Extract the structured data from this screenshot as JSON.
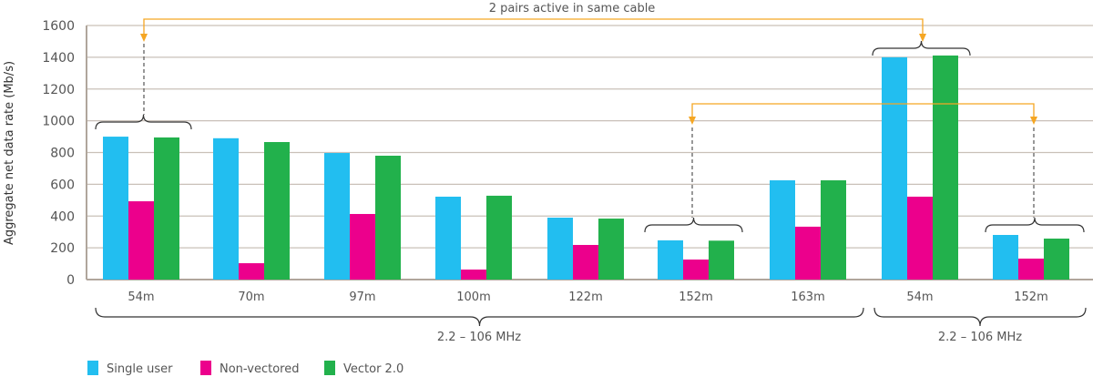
{
  "chart_data": {
    "type": "bar",
    "title": "",
    "xlabel": "",
    "ylabel": "Aggregate net data rate (Mb/s)",
    "ylim": [
      0,
      1600
    ],
    "yticks": [
      0,
      200,
      400,
      600,
      800,
      1000,
      1200,
      1400,
      1600
    ],
    "grid": true,
    "legend_position": "bottom-left",
    "categories": [
      "54m",
      "70m",
      "97m",
      "100m",
      "122m",
      "152m",
      "163m",
      "54m",
      "152m"
    ],
    "series": [
      {
        "name": "Single user",
        "color": "#22bef0",
        "values": [
          900,
          890,
          797,
          522,
          390,
          247,
          625,
          1400,
          281
        ]
      },
      {
        "name": "Non-vectored",
        "color": "#ec008c",
        "values": [
          493,
          103,
          413,
          63,
          218,
          126,
          333,
          522,
          132
        ]
      },
      {
        "name": "Vector 2.0",
        "color": "#22b14c",
        "values": [
          895,
          866,
          780,
          528,
          384,
          245,
          625,
          1411,
          258
        ]
      }
    ],
    "groups": [
      {
        "label": "2.2 – 106 MHz",
        "categories": [
          0,
          1,
          2,
          3,
          4,
          5,
          6
        ]
      },
      {
        "label": "2.2 – 106 MHz",
        "categories": [
          7,
          8
        ]
      }
    ],
    "annotations": [
      {
        "text": "2 pairs active in same cable",
        "links": [
          [
            0,
            7
          ]
        ],
        "color": "#f5a623"
      },
      {
        "text": "",
        "links": [
          [
            5,
            8
          ]
        ],
        "color": "#f5a623"
      }
    ]
  }
}
